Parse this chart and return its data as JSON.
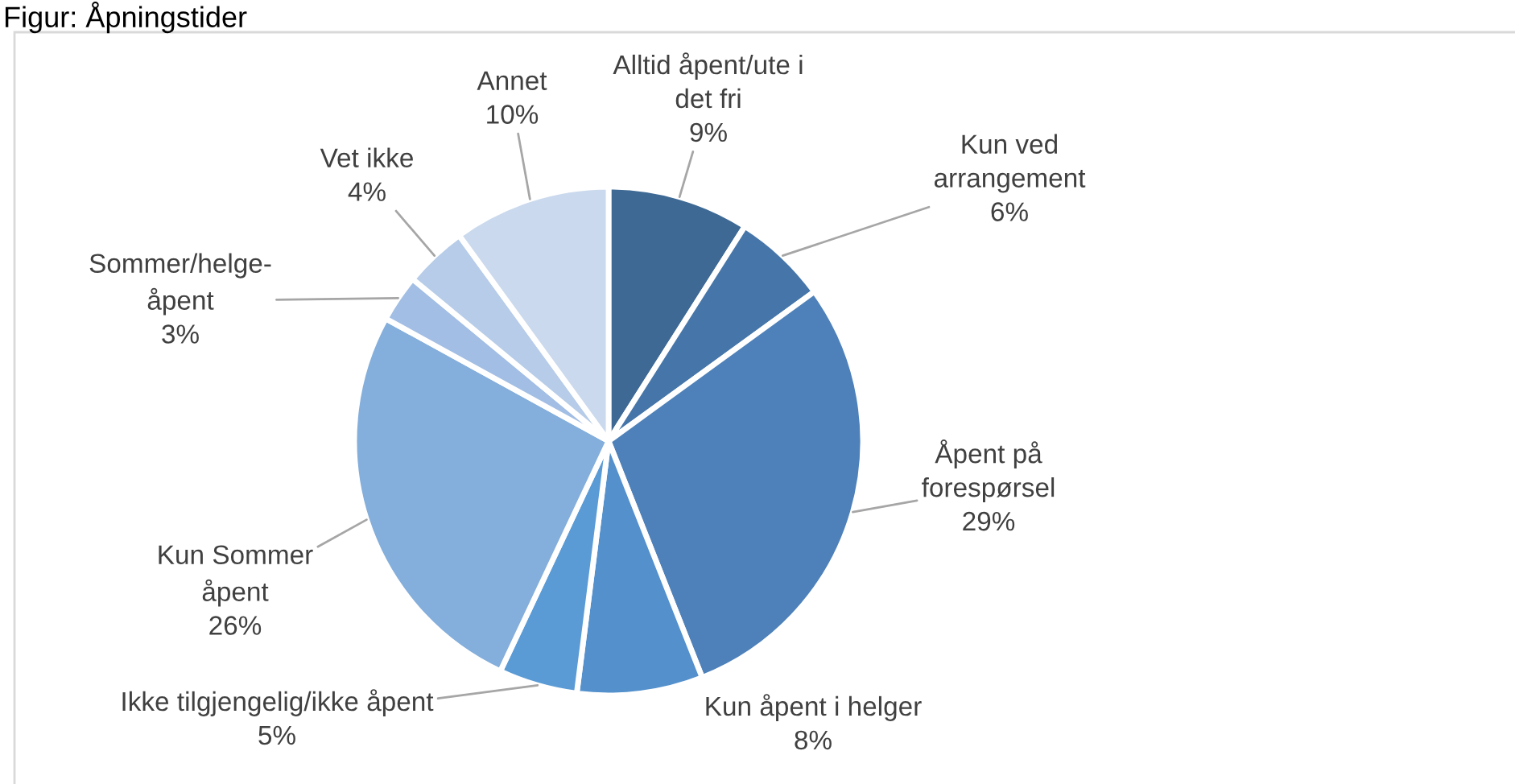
{
  "chart_data": {
    "type": "pie",
    "title": "Figur: Åpningstider",
    "categories": [
      "Alltid åpent/ute i\ndet fri",
      "Kun ved\narrangement",
      "Åpent på\nforespørsel",
      "Kun åpent i helger",
      "Ikke tilgjengelig/ikke åpent",
      "Kun Sommer\nåpent",
      "Sommer/helge-\nåpent",
      "Vet ikke",
      "Annet"
    ],
    "values": [
      9,
      6,
      29,
      8,
      5,
      26,
      3,
      4,
      10
    ],
    "value_labels": [
      "9%",
      "6%",
      "29%",
      "8%",
      "5%",
      "26%",
      "3%",
      "4%",
      "10%"
    ],
    "colors": [
      "#3d6994",
      "#4676a9",
      "#4e81b9",
      "#5390cc",
      "#5b9bd5",
      "#84aedb",
      "#a2bee4",
      "#b6cce8",
      "#cad9ed"
    ]
  }
}
